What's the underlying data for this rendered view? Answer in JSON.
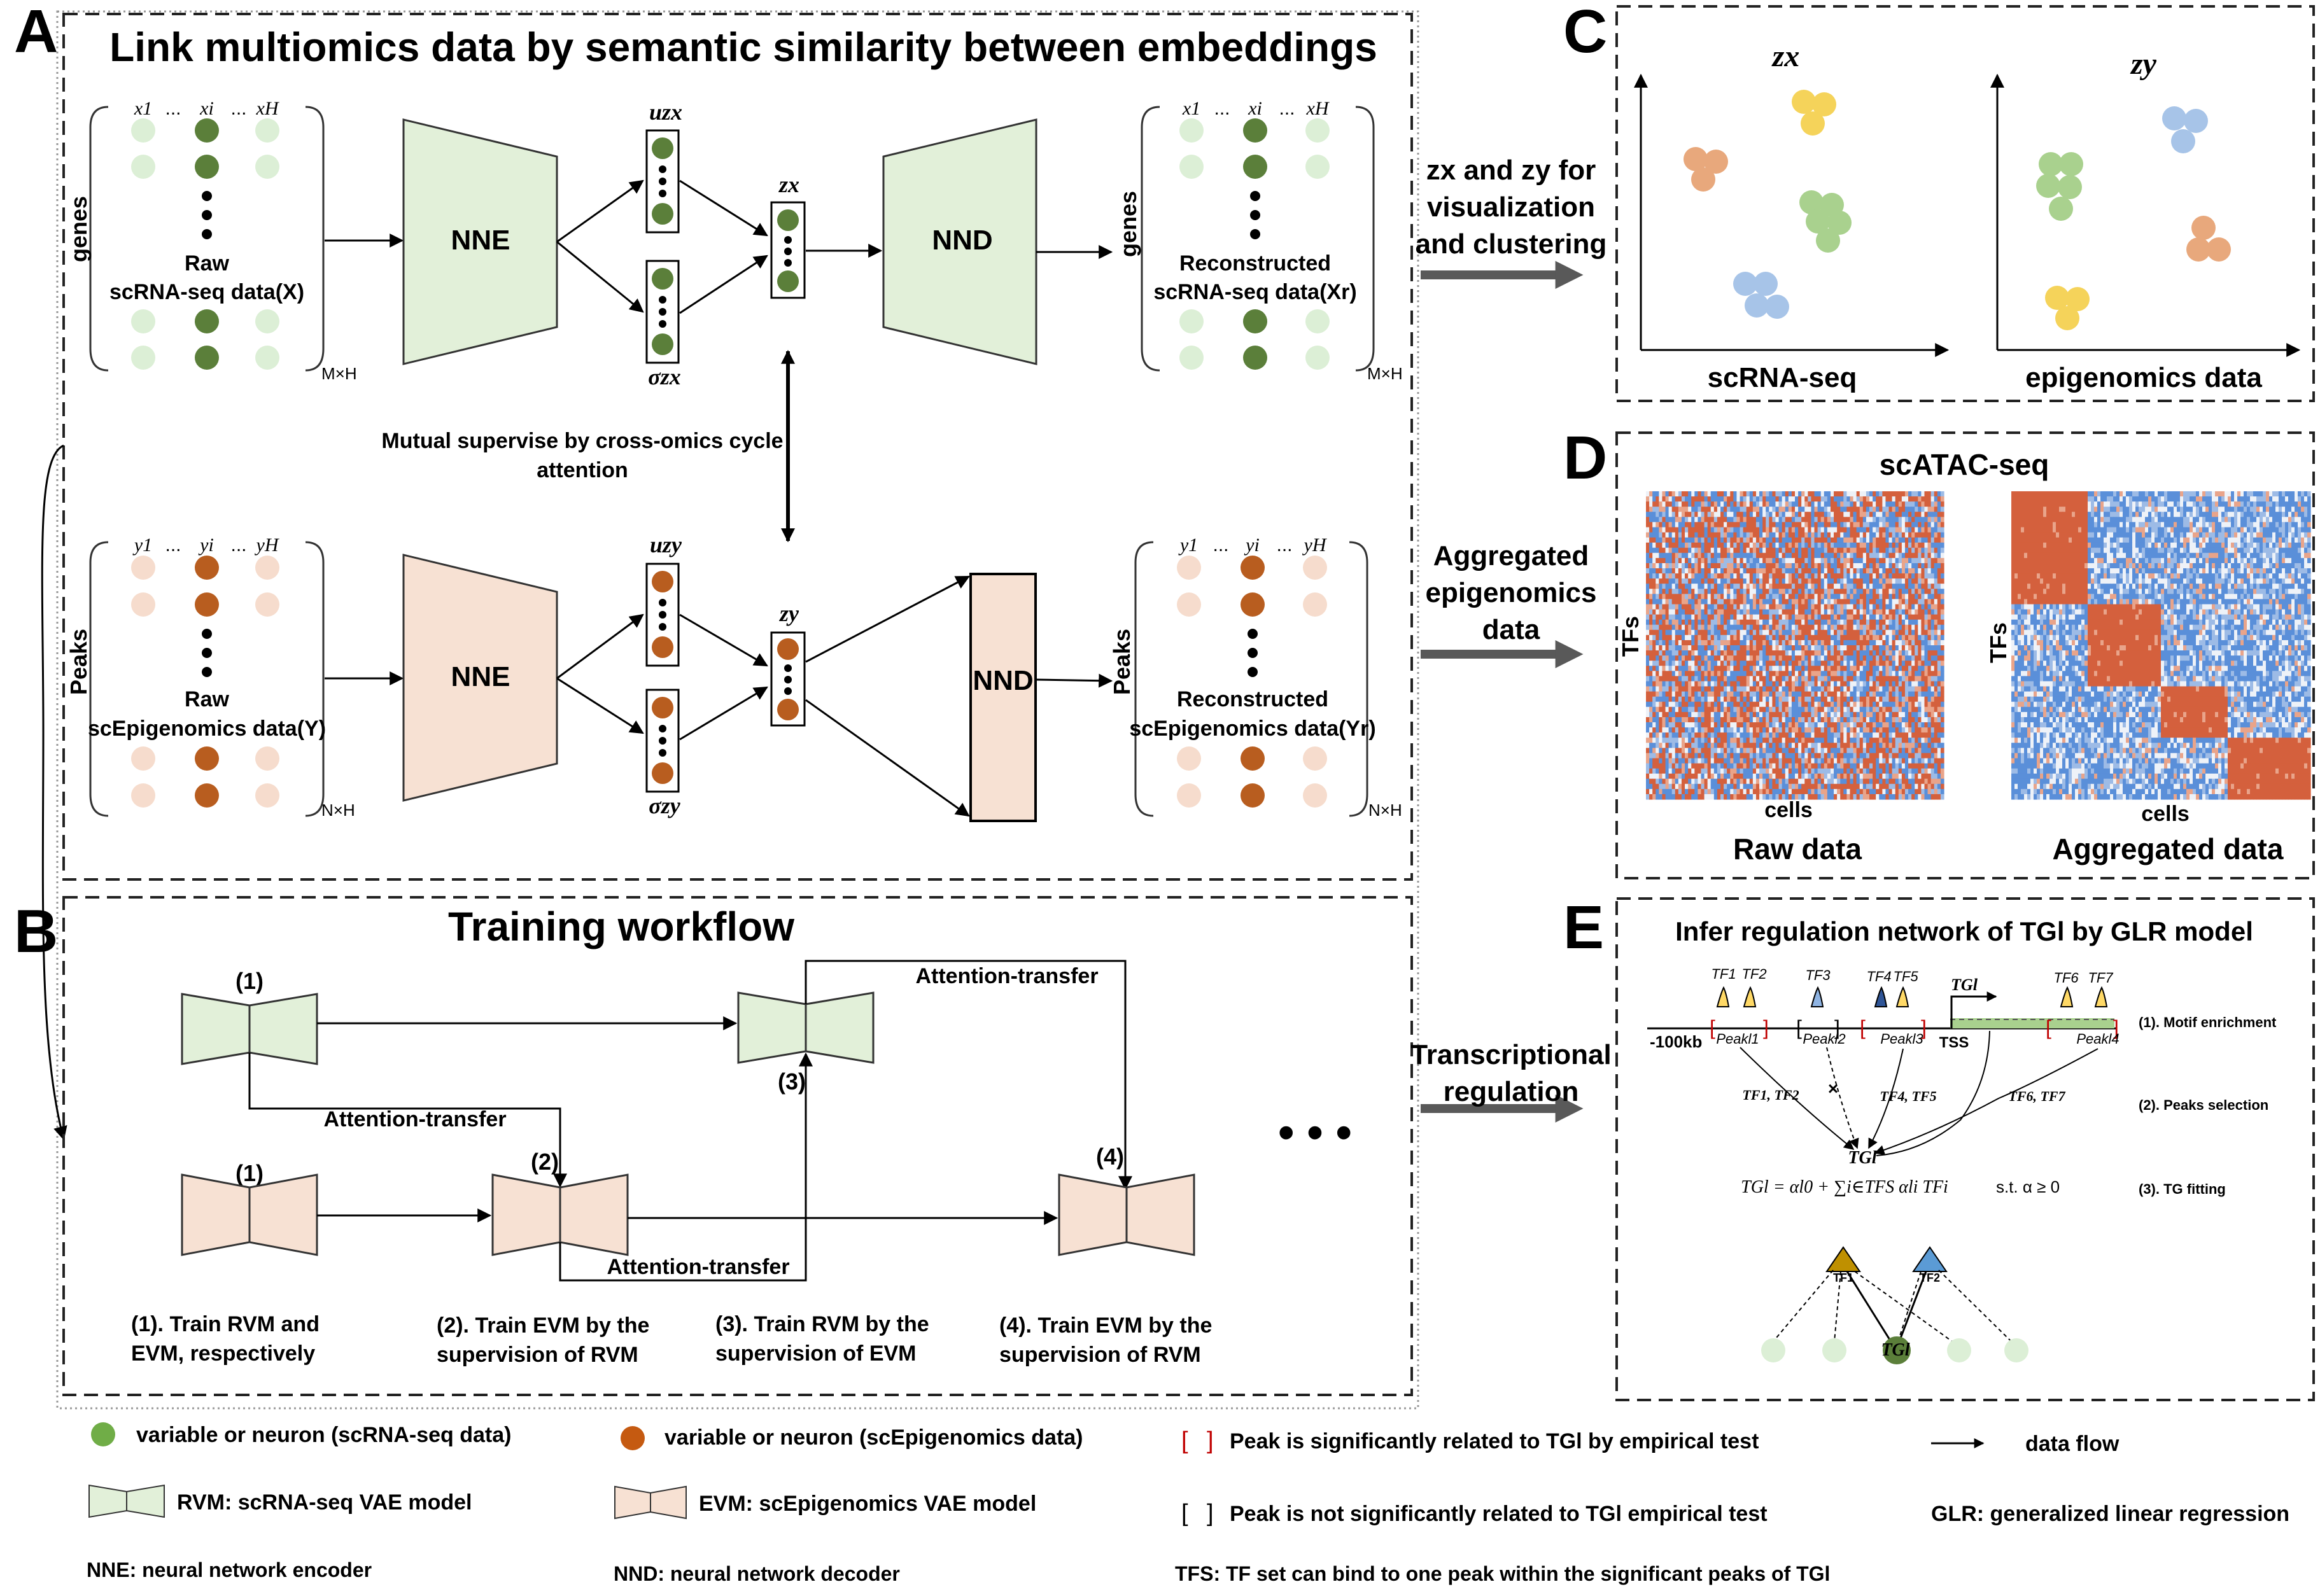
{
  "panels": {
    "a": {
      "letter": "A",
      "title": "Link multiomics data by semantic similarity between embeddings"
    },
    "b": {
      "letter": "B",
      "title": "Training workflow"
    },
    "c": {
      "letter": "C"
    },
    "d": {
      "letter": "D",
      "title": "scATAC-seq"
    },
    "e": {
      "letter": "E",
      "title": "Infer regulation network of TGl by GLR model"
    }
  },
  "panel_a": {
    "rna": {
      "axis_label": "genes",
      "col_labels": [
        "x1",
        "...",
        "xi",
        "...",
        "xH"
      ],
      "raw_line1": "Raw",
      "raw_line2": "scRNA-seq data(X)",
      "dim_raw": "M×H",
      "recon_line1": "Reconstructed",
      "recon_line2": "scRNA-seq data(Xr)",
      "dim_recon": "M×H",
      "encoder": "NNE",
      "decoder": "NND",
      "mu": "uzx",
      "sigma": "σzx",
      "z": "zx"
    },
    "epi": {
      "axis_label": "Peaks",
      "col_labels": [
        "y1",
        "...",
        "yi",
        "...",
        "yH"
      ],
      "raw_line1": "Raw",
      "raw_line2": "scEpigenomics data(Y)",
      "dim_raw": "N×H",
      "recon_line1": "Reconstructed",
      "recon_line2": "scEpigenomics data(Yr)",
      "dim_recon": "N×H",
      "encoder": "NNE",
      "decoder": "NND",
      "mu": "uzy",
      "sigma": "σzy",
      "z": "zy"
    },
    "mutual_line1": "Mutual supervise by cross-omics cycle",
    "mutual_line2": "attention"
  },
  "panel_b": {
    "attn_top": "Attention-transfer",
    "attn_mid": "Attention-transfer",
    "attn_bottom": "Attention-transfer",
    "labels": [
      "(1)",
      "(1)",
      "(2)",
      "(3)",
      "(4)"
    ],
    "ellipsis": "• • •",
    "steps": [
      {
        "line1": "(1).  Train  RVM  and",
        "line2": "EVM, respectively"
      },
      {
        "line1": "(2).  Train  EVM  by  the",
        "line2": "supervision of RVM"
      },
      {
        "line1": "(3).  Train  RVM  by  the",
        "line2": "supervision of EVM"
      },
      {
        "line1": "(4).  Train  EVM  by  the",
        "line2": "supervision of RVM"
      }
    ]
  },
  "panel_c": {
    "plot1": {
      "title": "zx",
      "xlabel": "scRNA-seq"
    },
    "plot2": {
      "title": "zy",
      "xlabel": "epigenomics data"
    }
  },
  "panel_d": {
    "left": {
      "ylabel": "TFs",
      "xlabel": "cells",
      "caption": "Raw data"
    },
    "right": {
      "ylabel": "TFs",
      "xlabel": "cells",
      "caption": "Aggregated data"
    }
  },
  "panel_e": {
    "tf_labels": [
      "TF1",
      "TF2",
      "TF3",
      "TF4",
      "TF5",
      "TF6",
      "TF7"
    ],
    "tg_label": "TGl",
    "peaks": [
      "Peakl1",
      "Peakl2",
      "Peakl3",
      "Peakl4"
    ],
    "left_label": "-100kb",
    "tss": "TSS",
    "edge_labels": [
      "TF1, TF2",
      "TF4, TF5",
      "TF6, TF7"
    ],
    "cross": "×",
    "tg_node": "TGl",
    "equation": "TGl = αl0 + ∑i∈TFS αli TFi",
    "constraint": "s.t. α ≥ 0",
    "steps": [
      "(1). Motif enrichment",
      "(2). Peaks selection",
      "(3). TG fitting"
    ],
    "tree_tf1": "TF1",
    "tree_tf2": "TF2",
    "tree_tg": "TGl"
  },
  "flow_arrows": {
    "c_line1": "zx and zy for",
    "c_line2": "visualization",
    "c_line3": "and clustering",
    "d_line1": "Aggregated",
    "d_line2": "epigenomics",
    "d_line3": "data",
    "e_line1": "Transcriptional",
    "e_line2": "regulation"
  },
  "legend": {
    "green_var": "variable or neuron (scRNA-seq data)",
    "brown_var": "variable or neuron (scEpigenomics data)",
    "sig_peak": "Peak is significantly related to TGl by empirical test",
    "data_flow": "data flow",
    "rvm": "RVM: scRNA-seq VAE model",
    "evm": "EVM: scEpigenomics VAE model",
    "nonsig_peak": "Peak is not significantly related to TGl empirical test",
    "glr": "GLR: generalized linear regression",
    "nne": "NNE: neural network encoder",
    "nnd": "NND: neural network decoder",
    "tfs": "TFS: TF set can bind to one peak within the significant peaks of TGl"
  },
  "colors": {
    "green_dark": "#5b7f3a",
    "green_light": "#dcefd6",
    "green_fill": "#e2f0d9",
    "brown_dark": "#b85d1f",
    "brown_light": "#f6dccd",
    "brown_fill": "#f7e1d3",
    "heat_red": "#d4603d",
    "heat_blue": "#5a8fd9",
    "gray_arrow": "#595959"
  }
}
